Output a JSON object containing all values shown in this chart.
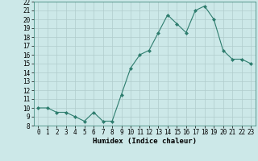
{
  "x": [
    0,
    1,
    2,
    3,
    4,
    5,
    6,
    7,
    8,
    9,
    10,
    11,
    12,
    13,
    14,
    15,
    16,
    17,
    18,
    19,
    20,
    21,
    22,
    23
  ],
  "y": [
    10,
    10,
    9.5,
    9.5,
    9,
    8.5,
    9.5,
    8.5,
    8.5,
    11.5,
    14.5,
    16,
    16.5,
    18.5,
    20.5,
    19.5,
    18.5,
    21,
    21.5,
    20,
    16.5,
    15.5,
    15.5,
    15
  ],
  "line_color": "#2e7d6e",
  "marker": "D",
  "marker_size": 2,
  "bg_color": "#cce8e8",
  "grid_color": "#b0cccc",
  "xlabel": "Humidex (Indice chaleur)",
  "xlim": [
    -0.5,
    23.5
  ],
  "ylim": [
    8,
    22
  ],
  "xtick_labels": [
    "0",
    "1",
    "2",
    "3",
    "4",
    "5",
    "6",
    "7",
    "8",
    "9",
    "10",
    "11",
    "12",
    "13",
    "14",
    "15",
    "16",
    "17",
    "18",
    "19",
    "20",
    "21",
    "22",
    "23"
  ],
  "ytick_values": [
    8,
    9,
    10,
    11,
    12,
    13,
    14,
    15,
    16,
    17,
    18,
    19,
    20,
    21,
    22
  ],
  "xlabel_fontsize": 6.5,
  "tick_fontsize": 5.5
}
